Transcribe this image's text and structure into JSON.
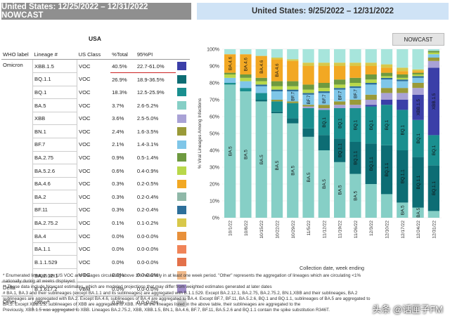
{
  "header": {
    "left_title": "United States: 12/25/2022 – 12/31/2022 NOWCAST",
    "right_title": "United States: 9/25/2022 – 12/31/2022"
  },
  "table": {
    "region": "USA",
    "columns": [
      "WHO label",
      "Lineage #",
      "US Class",
      "%Total",
      "95%PI"
    ],
    "rows": [
      {
        "who": "Omicron",
        "lineage": "XBB.1.5",
        "cls": "VOC",
        "pct": "40.5%",
        "pi": "22.7-61.0%",
        "color": "#3b3fa8"
      },
      {
        "who": "",
        "lineage": "BQ.1.1",
        "cls": "VOC",
        "pct": "26.9%",
        "pi": "18.9-36.5%",
        "color": "#0d6d74"
      },
      {
        "who": "",
        "lineage": "BQ.1",
        "cls": "VOC",
        "pct": "18.3%",
        "pi": "12.5-25.9%",
        "color": "#1a8f8f"
      },
      {
        "who": "",
        "lineage": "BA.5",
        "cls": "VOC",
        "pct": "3.7%",
        "pi": "2.6-5.2%",
        "color": "#86cfc6"
      },
      {
        "who": "",
        "lineage": "XBB",
        "cls": "VOC",
        "pct": "3.6%",
        "pi": "2.5-5.0%",
        "color": "#a9a2d6"
      },
      {
        "who": "",
        "lineage": "BN.1",
        "cls": "VOC",
        "pct": "2.4%",
        "pi": "1.6-3.5%",
        "color": "#9a9a38"
      },
      {
        "who": "",
        "lineage": "BF.7",
        "cls": "VOC",
        "pct": "2.1%",
        "pi": "1.4-3.1%",
        "color": "#7fc6e8"
      },
      {
        "who": "",
        "lineage": "BA.2.75",
        "cls": "VOC",
        "pct": "0.9%",
        "pi": "0.5-1.4%",
        "color": "#6e9a40"
      },
      {
        "who": "",
        "lineage": "BA.5.2.6",
        "cls": "VOC",
        "pct": "0.6%",
        "pi": "0.4-0.9%",
        "color": "#b9d84a"
      },
      {
        "who": "",
        "lineage": "BA.4.6",
        "cls": "VOC",
        "pct": "0.3%",
        "pi": "0.2-0.5%",
        "color": "#f2a823"
      },
      {
        "who": "",
        "lineage": "BA.2",
        "cls": "VOC",
        "pct": "0.3%",
        "pi": "0.2-0.4%",
        "color": "#8fb8a8"
      },
      {
        "who": "",
        "lineage": "BF.11",
        "cls": "VOC",
        "pct": "0.3%",
        "pi": "0.2-0.4%",
        "color": "#2d6f9a"
      },
      {
        "who": "",
        "lineage": "BA.2.75.2",
        "cls": "VOC",
        "pct": "0.1%",
        "pi": "0.1-0.2%",
        "color": "#d8c84a"
      },
      {
        "who": "",
        "lineage": "BA.4",
        "cls": "VOC",
        "pct": "0.0%",
        "pi": "0.0-0.0%",
        "color": "#e8903a"
      },
      {
        "who": "",
        "lineage": "BA.1.1",
        "cls": "VOC",
        "pct": "0.0%",
        "pi": "0.0-0.0%",
        "color": "#f08458"
      },
      {
        "who": "",
        "lineage": "B.1.1.529",
        "cls": "VOC",
        "pct": "0.0%",
        "pi": "0.0-0.0%",
        "color": "#e3714a"
      },
      {
        "who": "",
        "lineage": "BA.2.12.1",
        "cls": "VOC",
        "pct": "0.0%",
        "pi": "0.0-0.0%",
        "color": "#f0b98a"
      },
      {
        "who": "Delta",
        "lineage": "B.1.617.2",
        "cls": "VBM",
        "pct": "0.0%",
        "pi": "0.0-0.0%",
        "color": "#a08cc8"
      },
      {
        "who": "Other",
        "lineage": "Other*",
        "cls": "",
        "pct": "0.0%",
        "pi": "0.0-0.0%",
        "color": "#d4d4d4"
      }
    ]
  },
  "nowcast_tab": "NOWCAST",
  "chart_data": {
    "type": "bar",
    "stacked": true,
    "ylabel": "% Viral Lineages Among Infections",
    "xlabel": "Collection date, week ending",
    "ylim": [
      0,
      100
    ],
    "yticks": [
      "0%",
      "10%",
      "20%",
      "30%",
      "40%",
      "50%",
      "60%",
      "70%",
      "80%",
      "90%",
      "100%"
    ],
    "categories": [
      "10/1/22",
      "10/8/22",
      "10/15/22",
      "10/22/22",
      "10/29/22",
      "11/5/22",
      "11/12/22",
      "11/19/22",
      "11/26/22",
      "12/3/22",
      "12/10/22",
      "12/17/22",
      "12/24/22",
      "12/31/22"
    ],
    "series": [
      {
        "name": "BA.5",
        "color": "#86cfc6",
        "values": [
          79,
          75,
          69,
          62,
          56,
          48,
          40,
          33,
          26,
          20,
          14,
          9,
          6,
          4
        ]
      },
      {
        "name": "BQ.1.1",
        "color": "#0d6d74",
        "values": [
          0,
          0,
          1,
          1,
          3,
          5,
          9,
          14,
          19,
          24,
          29,
          31,
          30,
          27
        ]
      },
      {
        "name": "BQ.1",
        "color": "#1a8f8f",
        "values": [
          1,
          2,
          4,
          6,
          9,
          12,
          15,
          18,
          20,
          22,
          24,
          24,
          22,
          18
        ]
      },
      {
        "name": "XBB.1.5",
        "color": "#3b3fa8",
        "values": [
          0,
          0,
          0,
          0,
          0,
          0,
          0,
          0,
          0,
          1,
          3,
          6,
          15,
          40
        ]
      },
      {
        "name": "XBB",
        "color": "#a9a2d6",
        "values": [
          0,
          0,
          0,
          0,
          0,
          1,
          1,
          2,
          2,
          3,
          4,
          4,
          4,
          4
        ]
      },
      {
        "name": "BN.1",
        "color": "#9a9a38",
        "values": [
          0,
          0,
          0,
          1,
          1,
          1,
          2,
          2,
          3,
          3,
          3,
          3,
          3,
          2
        ]
      },
      {
        "name": "BF.7",
        "color": "#7fc6e8",
        "values": [
          3,
          4,
          4,
          5,
          6,
          6,
          7,
          7,
          7,
          6,
          5,
          4,
          3,
          2
        ]
      },
      {
        "name": "BF.11",
        "color": "#2d6f9a",
        "values": [
          0,
          0,
          1,
          1,
          1,
          1,
          1,
          1,
          1,
          1,
          1,
          1,
          1,
          0
        ]
      },
      {
        "name": "BA.5.2.6",
        "color": "#b9d84a",
        "values": [
          2,
          2,
          2,
          2,
          2,
          2,
          2,
          2,
          2,
          2,
          1,
          1,
          1,
          1
        ]
      },
      {
        "name": "BA.2.75",
        "color": "#6e9a40",
        "values": [
          1,
          2,
          2,
          3,
          3,
          3,
          3,
          3,
          3,
          3,
          2,
          2,
          1,
          1
        ]
      },
      {
        "name": "BA.4.6",
        "color": "#f2a823",
        "values": [
          11,
          12,
          13,
          13,
          12,
          11,
          10,
          8,
          7,
          5,
          3,
          2,
          1,
          0
        ]
      },
      {
        "name": "BA.2.75.2",
        "color": "#d8c84a",
        "values": [
          0,
          0,
          0,
          1,
          1,
          2,
          2,
          2,
          2,
          2,
          2,
          2,
          1,
          0
        ]
      },
      {
        "name": "Other",
        "color": "#a7e5dc",
        "values": [
          3,
          3,
          4,
          5,
          6,
          8,
          8,
          8,
          8,
          8,
          9,
          11,
          12,
          1
        ]
      }
    ],
    "bar_labels": [
      [
        "BA.5",
        "BA.4.6"
      ],
      [
        "BA.5",
        "BA.4.6"
      ],
      [
        "BA.5",
        "BA.4.6"
      ],
      [
        "BA.5",
        "BA.4.6"
      ],
      [
        "BA.5",
        "BF.7"
      ],
      [
        "BA.5",
        "BF.7"
      ],
      [
        "BA.5",
        "BQ.1",
        "BF.7"
      ],
      [
        "BA.5",
        "BQ.1.1",
        "BQ.1",
        "BF.7"
      ],
      [
        "BA.5",
        "BQ.1.1",
        "BQ.1",
        "BF.7"
      ],
      [
        "BQ.1.1",
        "BQ.1"
      ],
      [
        "BQ.1.1",
        "BQ.1"
      ],
      [
        "BA.5",
        "BQ.1.1",
        "BQ.1"
      ],
      [
        "BA.5",
        "BQ.1.1",
        "BQ.1",
        "XBB.1.5"
      ],
      [
        "BQ.1.1",
        "BQ.1",
        "XBB.1.5"
      ]
    ]
  },
  "footnotes": [
    "*      Enumerated lineages are US VOC and lineages circulating above 1% nationally in at least one week period. \"Other\" represents the aggregation of lineages which are circulating <1%",
    "nationally during all weeks displayed.",
    "**     These data include Nowcast estimates, which are modeled projections that may differ from weighted estimates generated at later dates",
    "#     BA.1, BA.3 and their sublineages (except BA.1.1 and its sublineages) are aggregated with B.1.1.529. Except BA.2.12.1, BA.2.75, BA.2.75.2, BN.1,XBB and their sublineages, BA.2",
    "sublineages are aggregated with BA.2. Except BA.4.6, sublineages of BA.4 are aggregated to BA.4. Except BF.7, BF.11, BA.5.2.6, BQ.1 and BQ.1.1, sublineages of BA.5 are aggregated to",
    "BA.5. Except XBB.1.5, sublineages of XBB are aggregated to XBB. For all the lineages listed in the above table, their sublineages are aggregated to the",
    "Previously, XBB.1.5 was aggregated to XBB. Lineages BA.2.75.2, XBB, XBB.1.5, BN.1, BA.4.6, BF.7, BF.11, BA.5.2.6 and BQ.1.1 contain the spike substitution R346T."
  ],
  "watermark": "头条 @话匣子FM"
}
